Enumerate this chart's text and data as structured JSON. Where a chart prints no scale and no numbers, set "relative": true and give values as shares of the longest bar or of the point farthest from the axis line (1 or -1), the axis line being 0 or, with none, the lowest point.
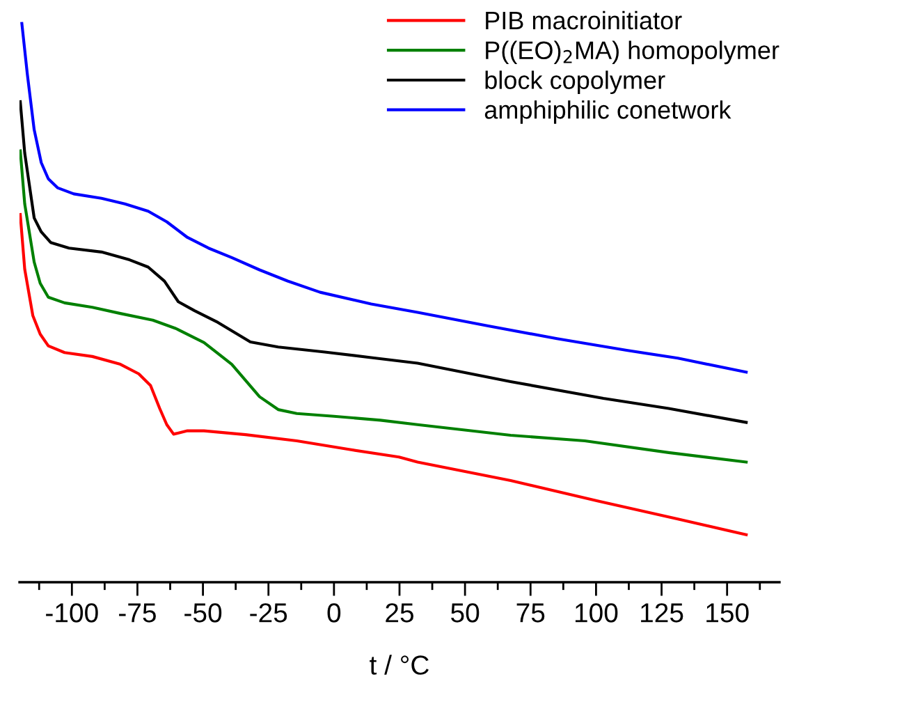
{
  "chart_data": {
    "type": "line",
    "relative": true,
    "xlabel": "t / °C",
    "legend": "top right",
    "xlim": [
      -120,
      170
    ],
    "xticks": [
      {
        "value": -112.5,
        "label": null
      },
      -100,
      {
        "value": -87.5,
        "label": null
      },
      -75,
      {
        "value": -62.5,
        "label": null
      },
      -50,
      {
        "value": -37.5,
        "label": null
      },
      -25,
      {
        "value": -12.5,
        "label": null
      },
      0,
      {
        "value": 12.5,
        "label": null
      },
      25,
      {
        "value": 37.5,
        "label": null
      },
      50,
      {
        "value": 62.5,
        "label": null
      },
      75,
      {
        "value": 87.5,
        "label": null
      },
      100,
      {
        "value": 112.5,
        "label": null
      },
      125,
      {
        "value": 137.5,
        "label": null
      },
      150,
      {
        "value": 162.5,
        "label": null
      }
    ],
    "tick_labels": "x",
    "series": [
      {
        "name": "PIB macroinitiator",
        "color": "#ff0000",
        "x": [
          -119.7,
          -118,
          -114.9,
          -112.1,
          -109,
          -102.8,
          -92.2,
          -81.5,
          -74.5,
          -70,
          -66.5,
          -63.8,
          -61.2,
          -55.9,
          -49.6,
          -33.7,
          -14.2,
          5.3,
          24.8,
          31.9,
          67.4,
          101.1,
          131.2,
          157.3
        ],
        "values": [
          0.658,
          0.56,
          0.477,
          0.444,
          0.423,
          0.411,
          0.404,
          0.39,
          0.373,
          0.352,
          0.311,
          0.282,
          0.265,
          0.271,
          0.271,
          0.264,
          0.253,
          0.238,
          0.224,
          0.215,
          0.182,
          0.145,
          0.113,
          0.085
        ]
      },
      {
        "name": "P((EO)$_{2}$MA) homopolymer",
        "color": "#008000",
        "x": [
          -119.7,
          -118,
          -114.4,
          -112.1,
          -109,
          -102.8,
          -92.2,
          -81.5,
          -69.1,
          -60.3,
          -49.6,
          -39,
          -28.4,
          -21.3,
          -14.2,
          0,
          17.7,
          31.9,
          67.4,
          95.7,
          127.7,
          157.3
        ],
        "values": [
          0.772,
          0.677,
          0.573,
          0.535,
          0.51,
          0.5,
          0.492,
          0.481,
          0.469,
          0.454,
          0.429,
          0.39,
          0.332,
          0.309,
          0.302,
          0.297,
          0.29,
          0.282,
          0.263,
          0.253,
          0.232,
          0.215
        ]
      },
      {
        "name": "block copolymer",
        "color": "#000000",
        "x": [
          -119.7,
          -118,
          -114.4,
          -111.7,
          -108.1,
          -101.1,
          -88.7,
          -78,
          -70.9,
          -64.7,
          -59.4,
          -53.2,
          -44.3,
          -31.9,
          -21.3,
          -3.5,
          14.2,
          31.9,
          67.4,
          102.8,
          127.7,
          157.3
        ],
        "values": [
          0.86,
          0.768,
          0.652,
          0.627,
          0.608,
          0.598,
          0.591,
          0.577,
          0.564,
          0.539,
          0.502,
          0.486,
          0.465,
          0.43,
          0.421,
          0.412,
          0.402,
          0.392,
          0.359,
          0.329,
          0.311,
          0.286
        ]
      },
      {
        "name": "amphiphilic conetwork",
        "color": "#0000ff",
        "x": [
          -119.1,
          -117,
          -114.4,
          -111.7,
          -109,
          -105.5,
          -99.3,
          -88.7,
          -79.8,
          -70.9,
          -63.8,
          -55.9,
          -47.9,
          -39,
          -28.4,
          -17.7,
          -5.3,
          14.2,
          31.9,
          58.5,
          85.1,
          111.7,
          131.2,
          157.3
        ],
        "values": [
          1.0,
          0.909,
          0.81,
          0.751,
          0.722,
          0.706,
          0.695,
          0.687,
          0.677,
          0.664,
          0.645,
          0.617,
          0.598,
          0.581,
          0.559,
          0.539,
          0.519,
          0.498,
          0.483,
          0.459,
          0.436,
          0.415,
          0.401,
          0.376
        ]
      }
    ]
  }
}
